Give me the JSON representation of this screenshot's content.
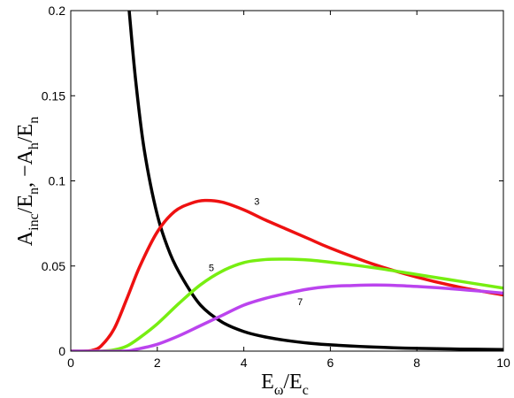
{
  "chart_data": {
    "type": "line",
    "xlim": [
      0,
      10
    ],
    "ylim": [
      0,
      0.2
    ],
    "x_ticks": [
      0,
      2,
      4,
      6,
      8,
      10
    ],
    "y_ticks": [
      0,
      0.05,
      0.1,
      0.15,
      0.2
    ],
    "x_tick_labels": [
      "0",
      "2",
      "4",
      "6",
      "8",
      "10"
    ],
    "y_tick_labels": [
      "0",
      "0.05",
      "0.1",
      "0.15",
      "0.2"
    ],
    "xlabel": {
      "main": "E",
      "sub1": "ω",
      "mid": "/E",
      "sub2": "c"
    },
    "ylabel": {
      "p1": "A",
      "s1": "inc",
      "p2": "/E",
      "s2": "n",
      "p3": ",   −A",
      "s3": "h",
      "p4": "/E",
      "s4": "n"
    },
    "grid": false,
    "series": [
      {
        "color": "#000000",
        "x": [
          1.35,
          1.5,
          1.7,
          2.0,
          2.3,
          2.6,
          3.0,
          3.5,
          4.0,
          4.5,
          5.0,
          5.5,
          6.0,
          7.0,
          8.0,
          9.0,
          10.0
        ],
        "y": [
          0.2,
          0.159,
          0.118,
          0.08,
          0.057,
          0.042,
          0.027,
          0.017,
          0.0115,
          0.0083,
          0.0062,
          0.0047,
          0.0037,
          0.0024,
          0.0016,
          0.0012,
          0.0009
        ]
      },
      {
        "name": "3",
        "color": "#ee1111",
        "x": [
          0,
          0.3,
          0.5,
          0.7,
          1.0,
          1.3,
          1.6,
          2.0,
          2.4,
          2.8,
          3.1,
          3.5,
          4.0,
          4.5,
          5.0,
          5.5,
          6.0,
          7.0,
          8.0,
          9.0,
          10.0
        ],
        "y": [
          0,
          0,
          0.0005,
          0.003,
          0.013,
          0.031,
          0.05,
          0.07,
          0.082,
          0.087,
          0.0885,
          0.0875,
          0.083,
          0.077,
          0.0715,
          0.066,
          0.0605,
          0.051,
          0.0435,
          0.0375,
          0.033
        ]
      },
      {
        "name": "5",
        "color": "#77ee11",
        "x": [
          0,
          0.7,
          1.0,
          1.3,
          1.6,
          2.0,
          2.5,
          3.0,
          3.5,
          4.0,
          4.5,
          5.0,
          5.5,
          6.0,
          7.0,
          8.0,
          9.0,
          10.0
        ],
        "y": [
          0,
          0,
          0.0007,
          0.003,
          0.008,
          0.016,
          0.028,
          0.039,
          0.047,
          0.052,
          0.0538,
          0.054,
          0.0535,
          0.0522,
          0.049,
          0.045,
          0.041,
          0.037
        ]
      },
      {
        "name": "7",
        "color": "#bb44ee",
        "x": [
          0,
          1.2,
          1.5,
          2.0,
          2.5,
          3.0,
          3.5,
          4.0,
          4.5,
          5.0,
          5.5,
          6.0,
          6.5,
          7.0,
          7.5,
          8.0,
          8.5,
          9.0,
          9.5,
          10.0
        ],
        "y": [
          0,
          0,
          0.001,
          0.004,
          0.009,
          0.015,
          0.021,
          0.027,
          0.031,
          0.034,
          0.0365,
          0.038,
          0.0385,
          0.0388,
          0.0386,
          0.038,
          0.0372,
          0.0362,
          0.0352,
          0.034
        ]
      }
    ],
    "curve_labels": [
      {
        "text": "3",
        "x": 4.3,
        "y": 0.086
      },
      {
        "text": "5",
        "x": 3.25,
        "y": 0.047
      },
      {
        "text": "7",
        "x": 5.3,
        "y": 0.027
      }
    ]
  }
}
